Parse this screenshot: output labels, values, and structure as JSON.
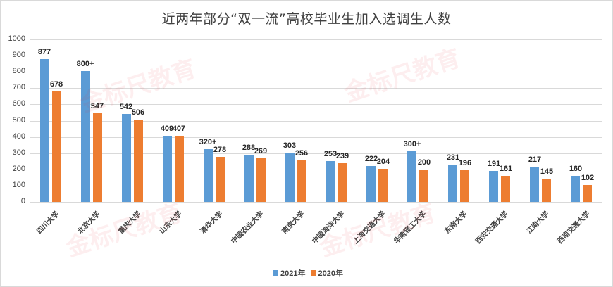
{
  "chart_data": {
    "type": "bar",
    "title": "近两年部分“双一流”高校毕业生加入选调生人数",
    "xlabel": "",
    "ylabel": "",
    "ylim": [
      0,
      1000
    ],
    "yticks": [
      0,
      100,
      200,
      300,
      400,
      500,
      600,
      700,
      800,
      900,
      1000
    ],
    "grid": true,
    "legend_position": "bottom",
    "categories": [
      "四川大学",
      "北京大学",
      "重庆大学",
      "山东大学",
      "清华大学",
      "中国农业大学",
      "南京大学",
      "中国海洋大学",
      "上海交通大学",
      "华南理工大学",
      "东南大学",
      "西安交通大学",
      "江南大学",
      "西南交通大学"
    ],
    "series": [
      {
        "name": "2021年",
        "color": "#5b9bd5",
        "values": [
          877,
          805,
          542,
          409,
          325,
          288,
          303,
          253,
          222,
          310,
          231,
          191,
          217,
          160
        ],
        "labels": [
          "877",
          "800+",
          "542",
          "409",
          "320+",
          "288",
          "303",
          "253",
          "222",
          "300+",
          "231",
          "191",
          "217",
          "160"
        ]
      },
      {
        "name": "2020年",
        "color": "#ed7d31",
        "values": [
          678,
          547,
          506,
          407,
          278,
          269,
          256,
          239,
          204,
          200,
          196,
          161,
          145,
          102
        ],
        "labels": [
          "678",
          "547",
          "506",
          "407",
          "278",
          "269",
          "256",
          "239",
          "204",
          "200",
          "196",
          "161",
          "145",
          "102"
        ]
      }
    ]
  },
  "watermark": "金标尺教育"
}
